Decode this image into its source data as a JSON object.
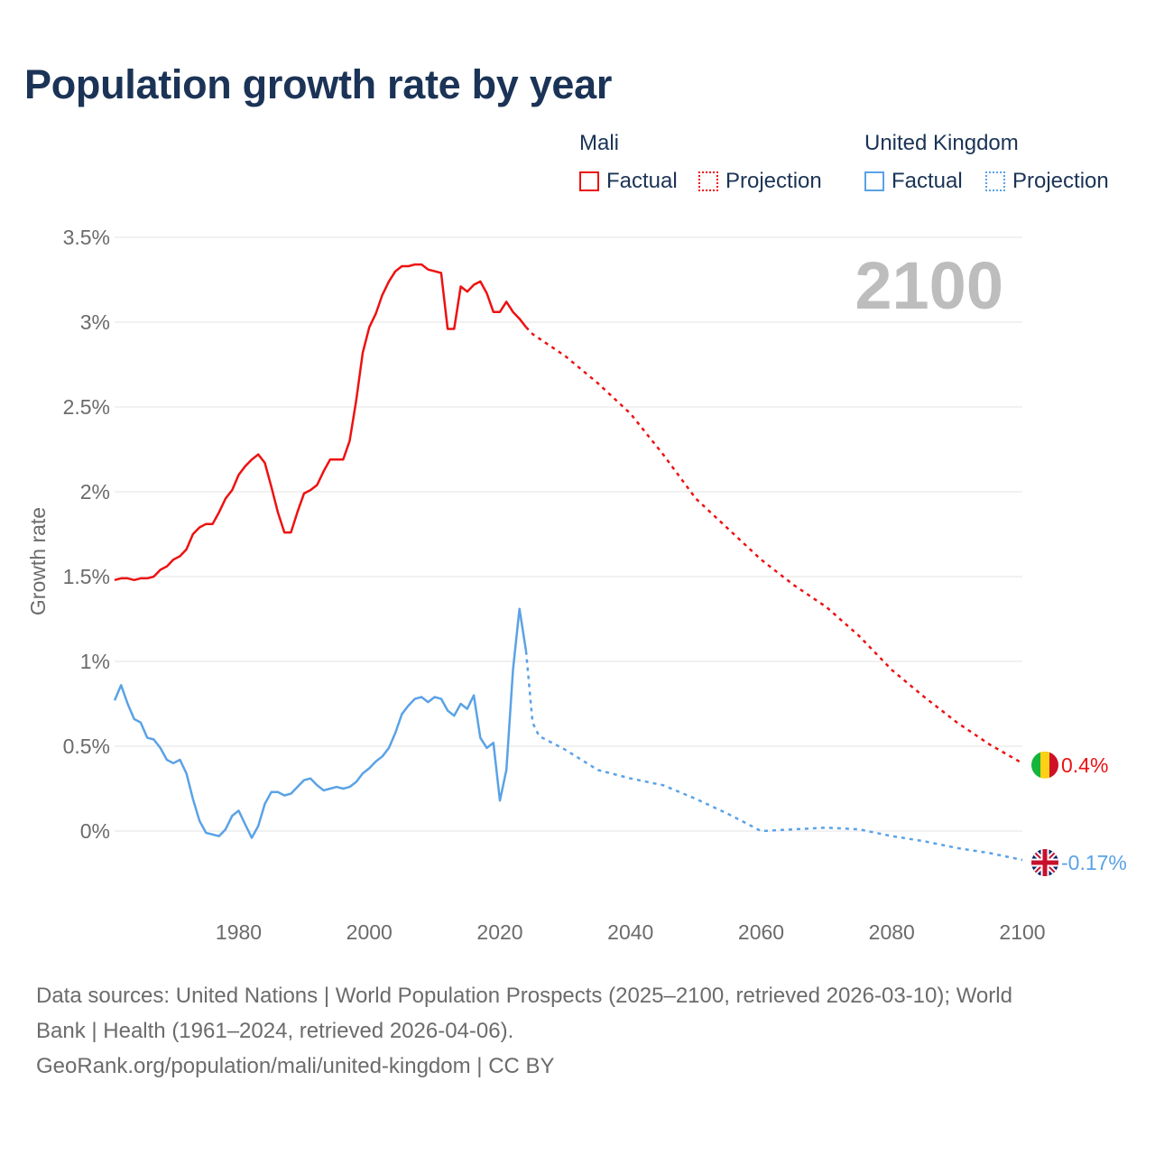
{
  "title": "Population growth rate by year",
  "legend": {
    "groups": [
      {
        "name": "Mali",
        "color": "#ee1111",
        "factual": "Factual",
        "projection": "Projection"
      },
      {
        "name": "United Kingdom",
        "color": "#5aa2e6",
        "factual": "Factual",
        "projection": "Projection"
      }
    ]
  },
  "footer": {
    "line1": "Data sources: United Nations | World Population Prospects (2025–2100, retrieved 2026-03-10); World",
    "line2": "Bank | Health (1961–2024, retrieved 2026-04-06).",
    "line3": "GeoRank.org/population/mali/united-kingdom | CC BY"
  },
  "chart_data": {
    "type": "line",
    "title": "Population growth rate by year",
    "xlabel": "",
    "ylabel": "Growth rate",
    "year_overlay": "2100",
    "xlim": [
      1961,
      2100
    ],
    "ylim": [
      -0.2,
      3.5
    ],
    "x_ticks": [
      1980,
      2000,
      2020,
      2040,
      2060,
      2080,
      2100
    ],
    "x_tick_labels": [
      "1980",
      "2000",
      "2020",
      "2040",
      "2060",
      "2080",
      "2100"
    ],
    "y_ticks": [
      0,
      0.5,
      1,
      1.5,
      2,
      2.5,
      3,
      3.5
    ],
    "y_tick_labels": [
      "0%",
      "0.5%",
      "1%",
      "1.5%",
      "2%",
      "2.5%",
      "3%",
      "3.5%"
    ],
    "grid": true,
    "legend_position": "top-right",
    "series": [
      {
        "name": "Mali",
        "kind": "Factual",
        "color": "#ee1111",
        "style": "solid",
        "x_start": 1961,
        "values": [
          1.48,
          1.49,
          1.49,
          1.48,
          1.49,
          1.49,
          1.5,
          1.54,
          1.56,
          1.6,
          1.62,
          1.66,
          1.75,
          1.79,
          1.81,
          1.81,
          1.88,
          1.96,
          2.01,
          2.1,
          2.15,
          2.19,
          2.22,
          2.17,
          2.03,
          1.88,
          1.76,
          1.76,
          1.88,
          1.99,
          2.01,
          2.04,
          2.12,
          2.19,
          2.19,
          2.19,
          2.3,
          2.54,
          2.82,
          2.97,
          3.05,
          3.16,
          3.24,
          3.3,
          3.33,
          3.33,
          3.34,
          3.34,
          3.31,
          3.3,
          3.29,
          2.96,
          2.96,
          3.21,
          3.18,
          3.22,
          3.24,
          3.17,
          3.06,
          3.06,
          3.12,
          3.06,
          3.02,
          2.97
        ]
      },
      {
        "name": "Mali",
        "kind": "Projection",
        "color": "#ee1111",
        "style": "dotted",
        "x": [
          2024,
          2025,
          2030,
          2035,
          2040,
          2045,
          2050,
          2055,
          2060,
          2065,
          2070,
          2075,
          2080,
          2085,
          2090,
          2095,
          2100
        ],
        "values": [
          2.97,
          2.93,
          2.8,
          2.64,
          2.46,
          2.22,
          1.96,
          1.78,
          1.6,
          1.45,
          1.32,
          1.15,
          0.95,
          0.79,
          0.64,
          0.51,
          0.4
        ]
      },
      {
        "name": "United Kingdom",
        "kind": "Factual",
        "color": "#5aa2e6",
        "style": "solid",
        "x_start": 1961,
        "values": [
          0.77,
          0.86,
          0.75,
          0.66,
          0.64,
          0.55,
          0.54,
          0.49,
          0.42,
          0.4,
          0.42,
          0.34,
          0.19,
          0.06,
          -0.01,
          -0.02,
          -0.03,
          0.01,
          0.09,
          0.12,
          0.04,
          -0.04,
          0.03,
          0.16,
          0.23,
          0.23,
          0.21,
          0.22,
          0.26,
          0.3,
          0.31,
          0.27,
          0.24,
          0.25,
          0.26,
          0.25,
          0.26,
          0.29,
          0.34,
          0.37,
          0.41,
          0.44,
          0.49,
          0.58,
          0.69,
          0.74,
          0.78,
          0.79,
          0.76,
          0.79,
          0.78,
          0.71,
          0.68,
          0.75,
          0.72,
          0.8,
          0.55,
          0.49,
          0.52,
          0.18,
          0.36,
          0.95,
          1.31,
          1.06
        ]
      },
      {
        "name": "United Kingdom",
        "kind": "Projection",
        "color": "#5aa2e6",
        "style": "dotted",
        "x": [
          2024,
          2025,
          2026,
          2030,
          2035,
          2040,
          2045,
          2050,
          2055,
          2060,
          2065,
          2070,
          2075,
          2080,
          2085,
          2090,
          2095,
          2100
        ],
        "values": [
          1.06,
          0.64,
          0.56,
          0.48,
          0.36,
          0.31,
          0.27,
          0.19,
          0.1,
          0.0,
          0.01,
          0.02,
          0.01,
          -0.03,
          -0.06,
          -0.1,
          -0.13,
          -0.17
        ]
      }
    ],
    "end_labels": [
      {
        "series": "Mali",
        "text": "0.4%",
        "value": 0.4,
        "color": "#ee1111",
        "flag": "mali-flag"
      },
      {
        "series": "United Kingdom",
        "text": "-0.17%",
        "value": -0.17,
        "color": "#5aa2e6",
        "flag": "uk-flag"
      }
    ]
  }
}
